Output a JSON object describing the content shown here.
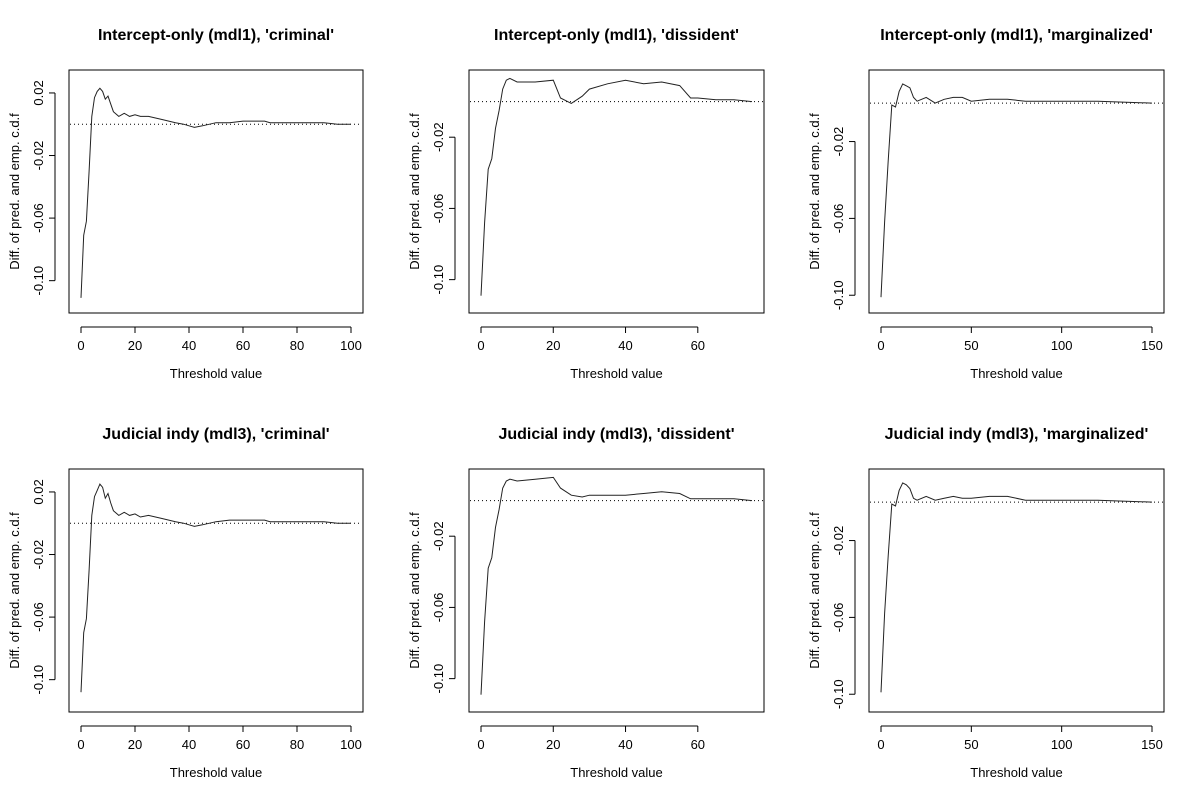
{
  "figure": {
    "background": "#ffffff",
    "line_color": "#222222"
  },
  "chart_data": [
    {
      "type": "line",
      "title": "Intercept-only (mdl1), 'criminal'",
      "xlabel": "Threshold value",
      "ylabel": "Diff. of pred. and emp. c.d.f",
      "xlim": [
        0,
        100
      ],
      "ylim": [
        -0.113,
        0.027
      ],
      "x_ticks": [
        0,
        20,
        40,
        60,
        80,
        100
      ],
      "y_ticks": [
        0.02,
        -0.02,
        -0.06,
        -0.1
      ],
      "y_tick_labels": [
        "0.02",
        "-0.02",
        "-0.06",
        "-0.10"
      ],
      "reference_line": 0,
      "grid": false,
      "x": [
        0,
        1,
        2,
        3,
        4,
        5,
        6,
        7,
        8,
        9,
        10,
        11,
        12,
        14,
        16,
        18,
        20,
        22,
        25,
        30,
        35,
        38,
        40,
        42,
        45,
        50,
        55,
        60,
        65,
        68,
        70,
        80,
        90,
        95,
        100
      ],
      "y": [
        -0.111,
        -0.071,
        -0.062,
        -0.03,
        0.005,
        0.017,
        0.021,
        0.023,
        0.021,
        0.016,
        0.018,
        0.013,
        0.008,
        0.005,
        0.007,
        0.005,
        0.006,
        0.005,
        0.005,
        0.003,
        0.001,
        0.0,
        -0.001,
        -0.002,
        -0.001,
        0.001,
        0.001,
        0.002,
        0.002,
        0.002,
        0.001,
        0.001,
        0.001,
        0.0,
        0.0
      ]
    },
    {
      "type": "line",
      "title": "Intercept-only (mdl1), 'dissident'",
      "xlabel": "Threshold value",
      "ylabel": "Diff. of pred. and emp. c.d.f",
      "xlim": [
        0,
        75
      ],
      "ylim": [
        -0.112,
        0.011
      ],
      "x_ticks": [
        0,
        20,
        40,
        60
      ],
      "y_ticks": [
        -0.02,
        -0.06,
        -0.1
      ],
      "y_tick_labels": [
        "-0.02",
        "-0.06",
        "-0.10"
      ],
      "reference_line": 0,
      "grid": false,
      "x": [
        0,
        1,
        2,
        3,
        4,
        5,
        6,
        7,
        8,
        10,
        15,
        20,
        22,
        25,
        28,
        30,
        35,
        40,
        45,
        50,
        55,
        58,
        60,
        65,
        70,
        75
      ],
      "y": [
        -0.109,
        -0.068,
        -0.038,
        -0.032,
        -0.015,
        -0.005,
        0.007,
        0.012,
        0.013,
        0.011,
        0.011,
        0.012,
        0.002,
        -0.001,
        0.003,
        0.007,
        0.01,
        0.012,
        0.01,
        0.011,
        0.009,
        0.002,
        0.002,
        0.001,
        0.001,
        0.0
      ]
    },
    {
      "type": "line",
      "title": "Intercept-only (mdl1), 'marginalized'",
      "xlabel": "Threshold value",
      "ylabel": "Diff. of pred. and emp. c.d.f",
      "xlim": [
        0,
        150
      ],
      "ylim": [
        -0.103,
        0.011
      ],
      "x_ticks": [
        0,
        50,
        100,
        150
      ],
      "y_ticks": [
        -0.02,
        -0.06,
        -0.1
      ],
      "y_tick_labels": [
        "-0.02",
        "-0.06",
        "-0.10"
      ],
      "reference_line": 0,
      "grid": false,
      "x": [
        0,
        2,
        4,
        6,
        8,
        10,
        12,
        14,
        16,
        18,
        20,
        25,
        30,
        35,
        40,
        45,
        50,
        60,
        70,
        80,
        100,
        120,
        150
      ],
      "y": [
        -0.101,
        -0.062,
        -0.03,
        -0.001,
        -0.002,
        0.006,
        0.01,
        0.009,
        0.008,
        0.003,
        0.001,
        0.003,
        0.0,
        0.002,
        0.003,
        0.003,
        0.001,
        0.002,
        0.002,
        0.001,
        0.001,
        0.001,
        0.0
      ]
    },
    {
      "type": "line",
      "title": "Judicial indy (mdl3), 'criminal'",
      "xlabel": "Threshold value",
      "ylabel": "Diff. of pred. and emp. c.d.f",
      "xlim": [
        0,
        100
      ],
      "ylim": [
        -0.113,
        0.027
      ],
      "x_ticks": [
        0,
        20,
        40,
        60,
        80,
        100
      ],
      "y_ticks": [
        0.02,
        -0.02,
        -0.06,
        -0.1
      ],
      "y_tick_labels": [
        "0.02",
        "-0.02",
        "-0.06",
        "-0.10"
      ],
      "reference_line": 0,
      "grid": false,
      "x": [
        0,
        1,
        2,
        3,
        4,
        5,
        6,
        7,
        8,
        9,
        10,
        11,
        12,
        14,
        16,
        18,
        20,
        22,
        25,
        30,
        35,
        38,
        40,
        42,
        45,
        50,
        55,
        60,
        65,
        68,
        70,
        80,
        90,
        95,
        100
      ],
      "y": [
        -0.108,
        -0.07,
        -0.061,
        -0.03,
        0.005,
        0.017,
        0.021,
        0.025,
        0.023,
        0.016,
        0.019,
        0.013,
        0.008,
        0.005,
        0.007,
        0.005,
        0.006,
        0.004,
        0.005,
        0.003,
        0.001,
        0.0,
        -0.001,
        -0.002,
        -0.001,
        0.001,
        0.002,
        0.002,
        0.002,
        0.002,
        0.001,
        0.001,
        0.001,
        0.0,
        0.0
      ]
    },
    {
      "type": "line",
      "title": "Judicial indy (mdl3), 'dissident'",
      "xlabel": "Threshold value",
      "ylabel": "Diff. of pred. and emp. c.d.f",
      "xlim": [
        0,
        75
      ],
      "ylim": [
        -0.112,
        0.011
      ],
      "x_ticks": [
        0,
        20,
        40,
        60
      ],
      "y_ticks": [
        -0.02,
        -0.06,
        -0.1
      ],
      "y_tick_labels": [
        "-0.02",
        "-0.06",
        "-0.10"
      ],
      "reference_line": 0,
      "grid": false,
      "x": [
        0,
        1,
        2,
        3,
        4,
        5,
        6,
        7,
        8,
        10,
        15,
        20,
        22,
        25,
        28,
        30,
        35,
        40,
        45,
        50,
        55,
        58,
        60,
        65,
        70,
        75
      ],
      "y": [
        -0.109,
        -0.068,
        -0.038,
        -0.032,
        -0.015,
        -0.005,
        0.007,
        0.011,
        0.012,
        0.011,
        0.012,
        0.013,
        0.007,
        0.003,
        0.002,
        0.003,
        0.003,
        0.003,
        0.004,
        0.005,
        0.004,
        0.001,
        0.001,
        0.001,
        0.001,
        0.0
      ]
    },
    {
      "type": "line",
      "title": "Judicial indy (mdl3), 'marginalized'",
      "xlabel": "Threshold value",
      "ylabel": "Diff. of pred. and emp. c.d.f",
      "xlim": [
        0,
        150
      ],
      "ylim": [
        -0.103,
        0.011
      ],
      "x_ticks": [
        0,
        50,
        100,
        150
      ],
      "y_ticks": [
        -0.02,
        -0.06,
        -0.1
      ],
      "y_tick_labels": [
        "-0.02",
        "-0.06",
        "-0.10"
      ],
      "reference_line": 0,
      "grid": false,
      "x": [
        0,
        2,
        4,
        6,
        8,
        10,
        12,
        14,
        16,
        18,
        20,
        25,
        30,
        35,
        40,
        45,
        50,
        60,
        70,
        80,
        100,
        120,
        150
      ],
      "y": [
        -0.099,
        -0.058,
        -0.028,
        -0.001,
        -0.002,
        0.006,
        0.01,
        0.009,
        0.007,
        0.002,
        0.001,
        0.003,
        0.001,
        0.002,
        0.003,
        0.002,
        0.002,
        0.003,
        0.003,
        0.001,
        0.001,
        0.001,
        0.0
      ]
    }
  ]
}
